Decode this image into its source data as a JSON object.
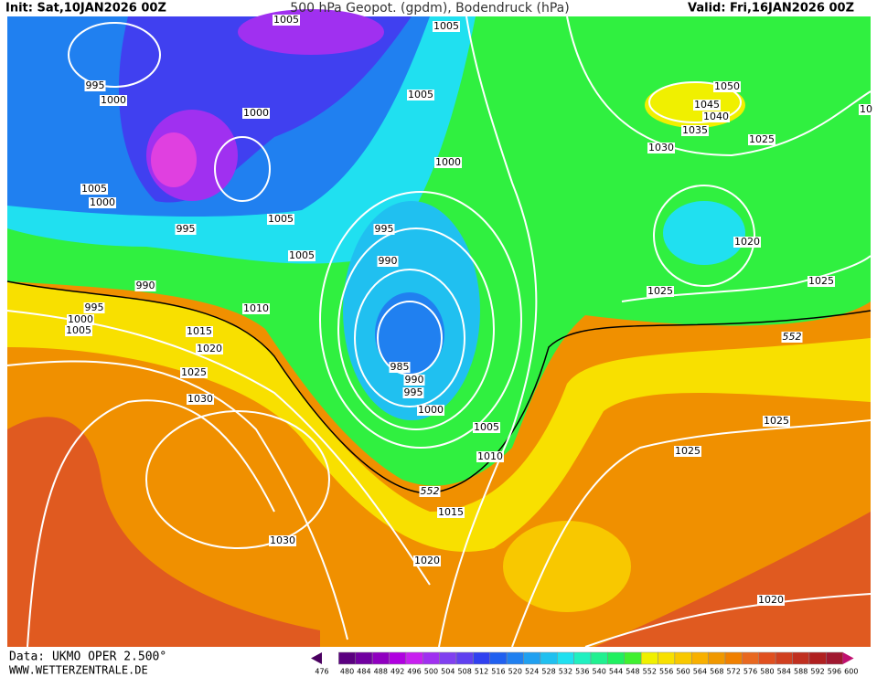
{
  "header": {
    "init": "Init: Sat,10JAN2026 00Z",
    "title": "500 hPa Geopot. (gpdm), Bodendruck (hPa)",
    "valid": "Valid: Fri,16JAN2026 00Z"
  },
  "isobars": {
    "labels": [
      "1005",
      "1005",
      "995",
      "1000",
      "1000",
      "1005",
      "1050",
      "1045",
      "1040",
      "1035",
      "1030",
      "1025",
      "1000",
      "10",
      "1005",
      "1000",
      "995",
      "1005",
      "995",
      "1020",
      "1005",
      "990",
      "990",
      "1025",
      "1025",
      "995",
      "1010",
      "1000",
      "1005",
      "1015",
      "1020",
      "985",
      "990",
      "995",
      "1025",
      "1030",
      "1000",
      "1025",
      "1005",
      "1025",
      "1010",
      "1015",
      "1030",
      "1020",
      "1020"
    ]
  },
  "geopotential": {
    "labels": [
      "552",
      "552"
    ]
  },
  "colorbar": {
    "levels": [
      476,
      480,
      484,
      488,
      492,
      496,
      500,
      504,
      508,
      512,
      516,
      520,
      524,
      528,
      532,
      536,
      540,
      544,
      548,
      552,
      556,
      560,
      564,
      568,
      572,
      576,
      580,
      584,
      588,
      592,
      596,
      600
    ],
    "colors": [
      "#4a0060",
      "#5a0080",
      "#7000a0",
      "#9000c0",
      "#b000e0",
      "#c820f0",
      "#a030f0",
      "#8040f0",
      "#6040f0",
      "#3040f0",
      "#2060f0",
      "#2080f0",
      "#20a0f0",
      "#20c0f0",
      "#20e0f0",
      "#20f0c0",
      "#20f090",
      "#20f060",
      "#40f030",
      "#f0f000",
      "#f8e000",
      "#f8c800",
      "#f8b000",
      "#f09800",
      "#f08000",
      "#e86820",
      "#e05020",
      "#d04020",
      "#c03020",
      "#b02020",
      "#a01830",
      "#c01070"
    ]
  },
  "footer": {
    "source": "Data: UKMO OPER 2.500°",
    "website": "WWW.WETTERZENTRALE.DE"
  }
}
